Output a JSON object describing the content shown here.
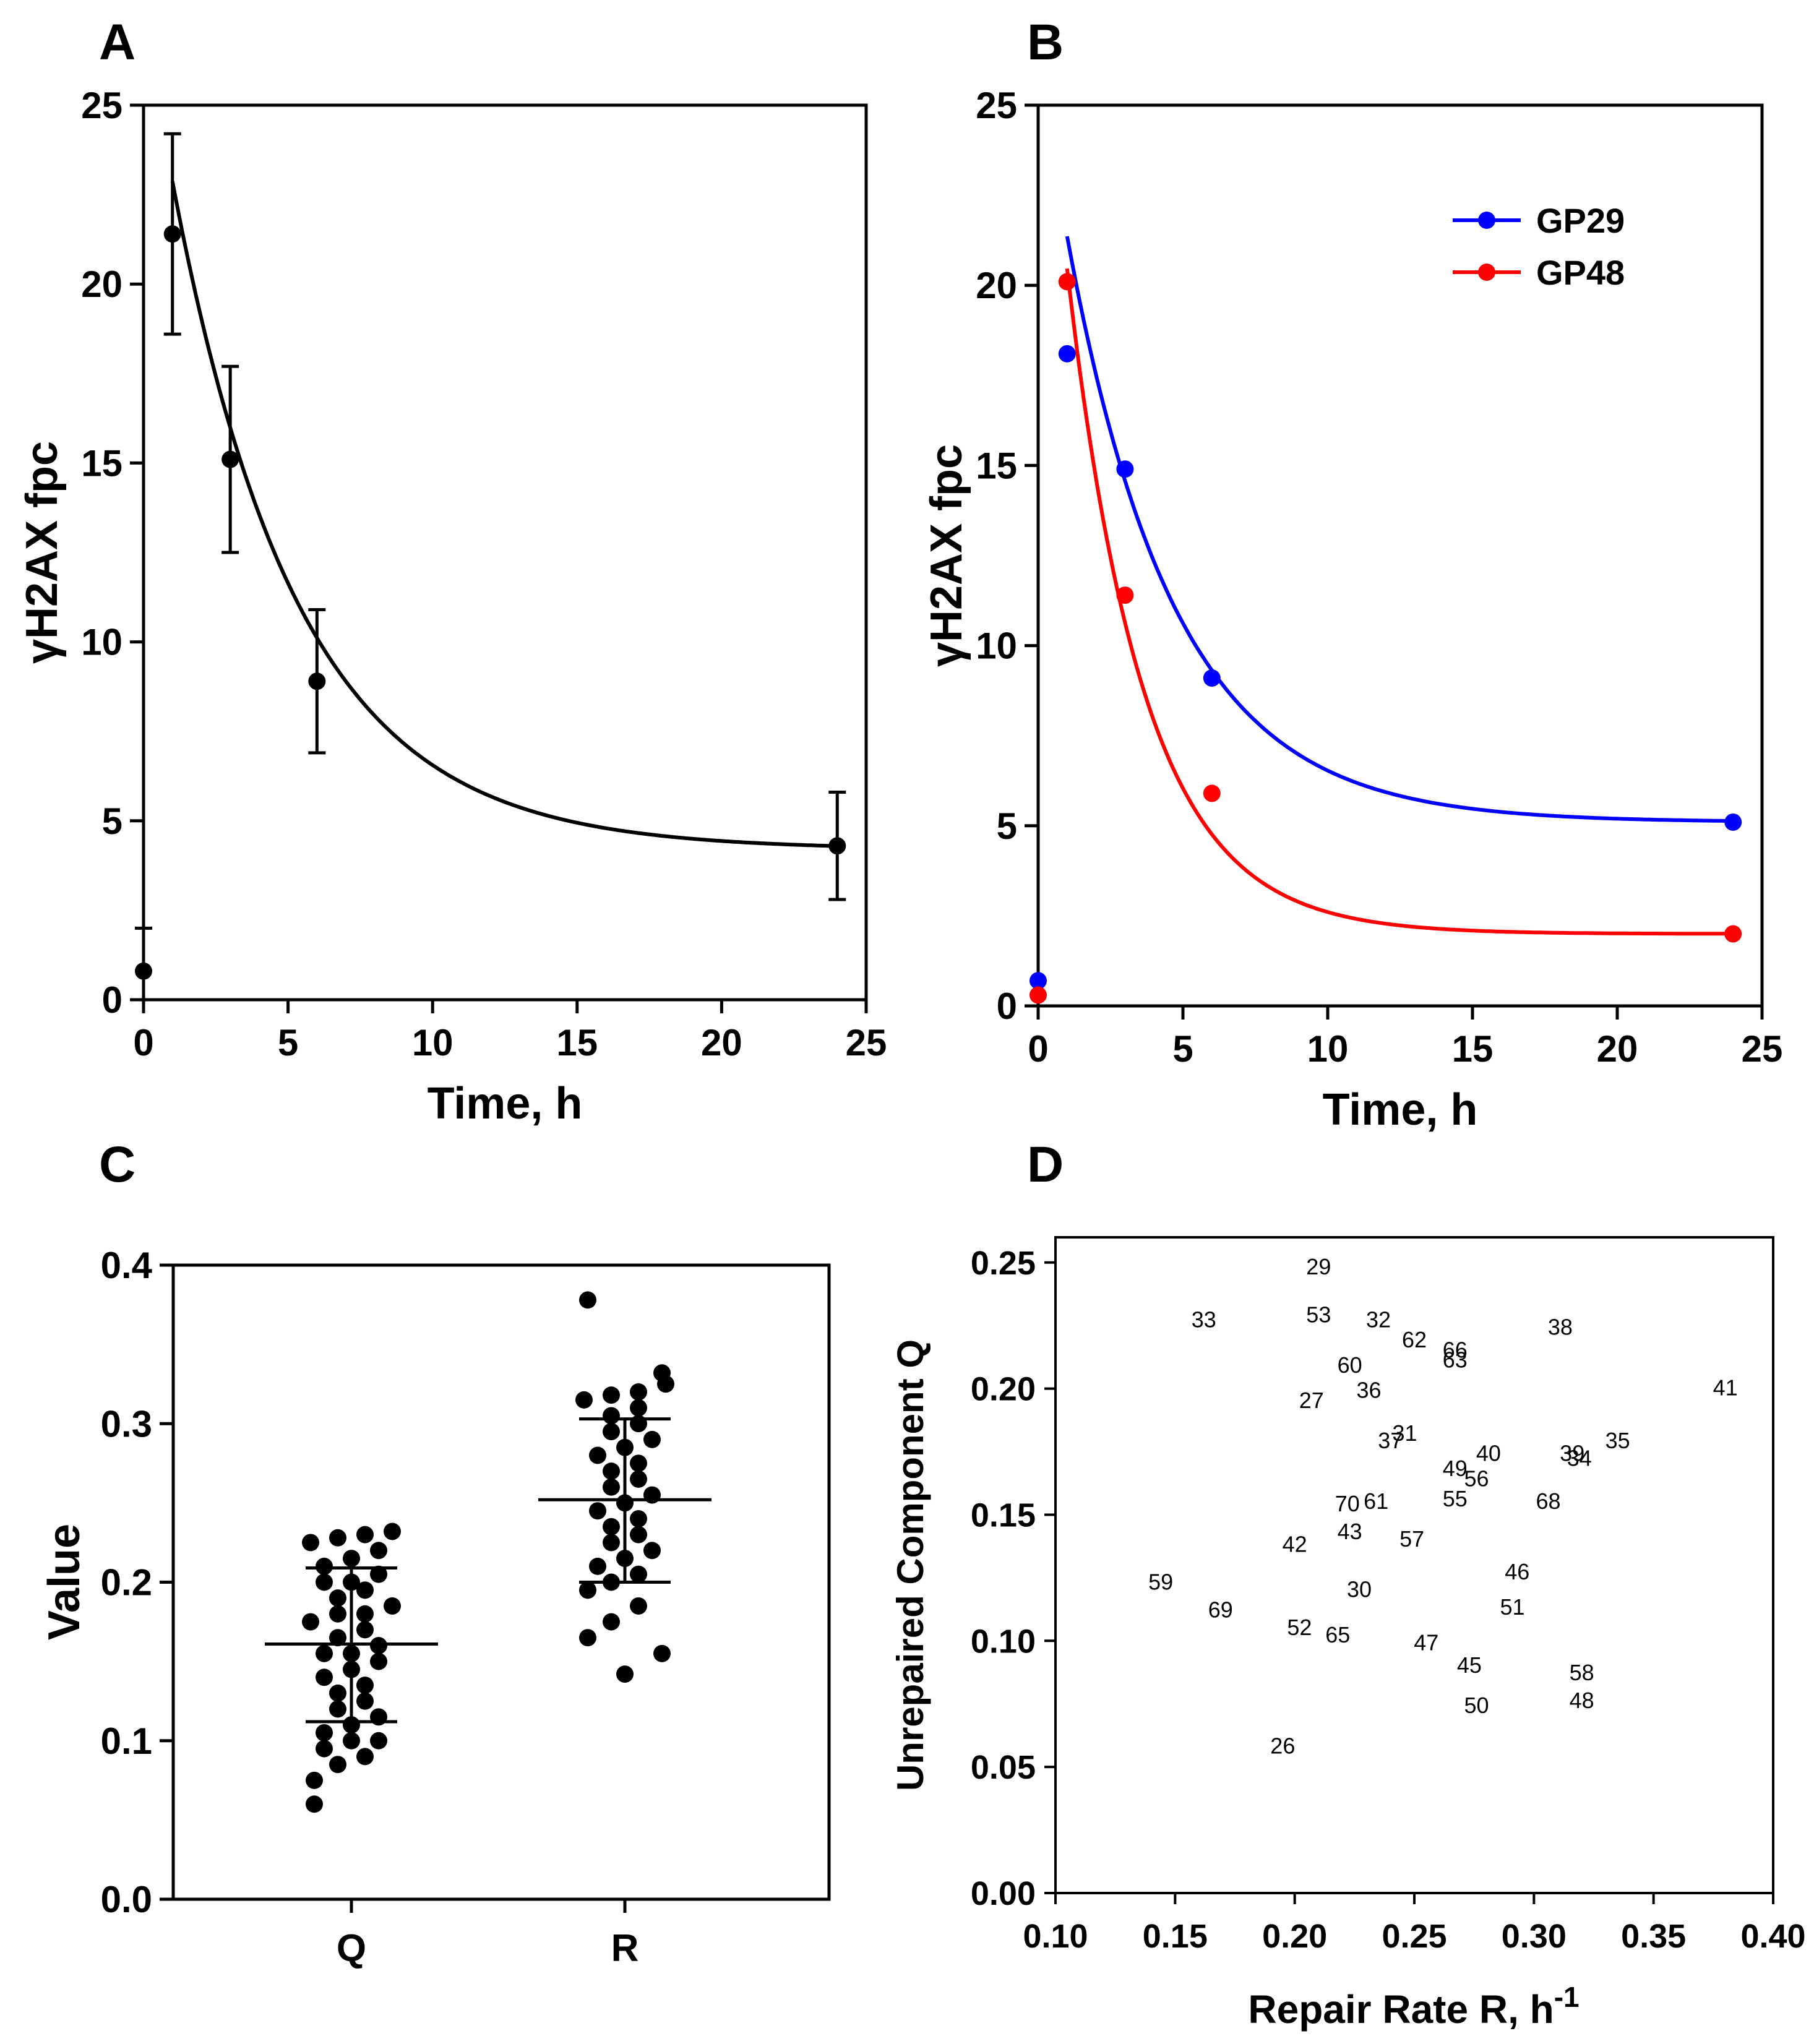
{
  "chart_data": [
    {
      "panel": "A",
      "type": "line",
      "xlabel": "Time, h",
      "ylabel": "γH2AX fpc",
      "xlim": [
        0,
        25
      ],
      "ylim": [
        0,
        25
      ],
      "xticks": [
        0,
        5,
        10,
        15,
        20,
        25
      ],
      "yticks": [
        0,
        5,
        10,
        15,
        20,
        25
      ],
      "series": [
        {
          "name": "mean",
          "color": "#000000",
          "x": [
            0,
            1,
            3,
            6,
            24
          ],
          "y": [
            0.8,
            21.4,
            15.1,
            8.9,
            4.3
          ],
          "yerr": [
            1.2,
            2.8,
            2.6,
            2.0,
            1.5
          ],
          "fit": {
            "model": "exponential",
            "a": 4.2,
            "b": 23.5,
            "k": 0.23,
            "from": 1,
            "to": 24
          }
        }
      ]
    },
    {
      "panel": "B",
      "type": "line",
      "xlabel": "Time, h",
      "ylabel": "γH2AX fpc",
      "xlim": [
        0,
        25
      ],
      "ylim": [
        0,
        25
      ],
      "xticks": [
        0,
        5,
        10,
        15,
        20,
        25
      ],
      "yticks": [
        0,
        5,
        10,
        15,
        20,
        25
      ],
      "legend": "top-right",
      "series": [
        {
          "name": "GP29",
          "color": "#0000ff",
          "x": [
            0,
            1,
            3,
            6,
            24
          ],
          "y": [
            0.7,
            18.1,
            14.9,
            9.1,
            5.1
          ],
          "fit": {
            "model": "exponential",
            "a": 5.1,
            "b": 21.3,
            "k": 0.27,
            "from": 1,
            "to": 24
          }
        },
        {
          "name": "GP48",
          "color": "#ff0000",
          "x": [
            0,
            1,
            3,
            6,
            24
          ],
          "y": [
            0.3,
            20.1,
            11.4,
            5.9,
            2.0
          ],
          "fit": {
            "model": "exponential",
            "a": 2.0,
            "b": 27.0,
            "k": 0.38,
            "from": 1,
            "to": 24
          }
        }
      ]
    },
    {
      "panel": "C",
      "type": "scatter",
      "ylabel": "Value",
      "categories": [
        "Q",
        "R"
      ],
      "ylim": [
        0.0,
        0.4
      ],
      "yticks": [
        "0.0",
        "0.1",
        "0.2",
        "0.3",
        "0.4"
      ],
      "series": [
        {
          "name": "Q",
          "mean": 0.161,
          "sd_low": 0.112,
          "sd_high": 0.209,
          "values": [
            0.06,
            0.075,
            0.085,
            0.09,
            0.095,
            0.1,
            0.1,
            0.105,
            0.11,
            0.115,
            0.12,
            0.125,
            0.13,
            0.135,
            0.14,
            0.145,
            0.15,
            0.155,
            0.155,
            0.16,
            0.165,
            0.17,
            0.175,
            0.18,
            0.18,
            0.185,
            0.19,
            0.195,
            0.2,
            0.2,
            0.205,
            0.21,
            0.215,
            0.22,
            0.225,
            0.228,
            0.23,
            0.232
          ]
        },
        {
          "name": "R",
          "mean": 0.252,
          "sd_low": 0.2,
          "sd_high": 0.303,
          "values": [
            0.142,
            0.155,
            0.165,
            0.175,
            0.185,
            0.195,
            0.2,
            0.205,
            0.21,
            0.215,
            0.22,
            0.225,
            0.23,
            0.235,
            0.24,
            0.245,
            0.25,
            0.255,
            0.26,
            0.265,
            0.27,
            0.275,
            0.28,
            0.285,
            0.29,
            0.295,
            0.3,
            0.305,
            0.31,
            0.315,
            0.318,
            0.32,
            0.325,
            0.332,
            0.378
          ]
        }
      ]
    },
    {
      "panel": "D",
      "type": "scatter",
      "xlabel": "Repair Rate R, h",
      "xlabel_sup": "-1",
      "ylabel": "Unrepaired Component Q",
      "xlim": [
        0.1,
        0.4
      ],
      "ylim": [
        0.0,
        0.26
      ],
      "xticks": [
        "0.10",
        "0.15",
        "0.20",
        "0.25",
        "0.30",
        "0.35",
        "0.40"
      ],
      "yticks": [
        "0.00",
        "0.05",
        "0.10",
        "0.15",
        "0.20",
        "0.25"
      ],
      "points": [
        {
          "label": "29",
          "x": 0.21,
          "y": 0.249
        },
        {
          "label": "33",
          "x": 0.162,
          "y": 0.228
        },
        {
          "label": "53",
          "x": 0.21,
          "y": 0.23
        },
        {
          "label": "32",
          "x": 0.235,
          "y": 0.228
        },
        {
          "label": "62",
          "x": 0.25,
          "y": 0.22
        },
        {
          "label": "66",
          "x": 0.267,
          "y": 0.216
        },
        {
          "label": "63",
          "x": 0.267,
          "y": 0.212
        },
        {
          "label": "38",
          "x": 0.311,
          "y": 0.225
        },
        {
          "label": "60",
          "x": 0.223,
          "y": 0.21
        },
        {
          "label": "36",
          "x": 0.231,
          "y": 0.2
        },
        {
          "label": "27",
          "x": 0.207,
          "y": 0.196
        },
        {
          "label": "41",
          "x": 0.38,
          "y": 0.201
        },
        {
          "label": "37",
          "x": 0.24,
          "y": 0.18
        },
        {
          "label": "31",
          "x": 0.246,
          "y": 0.183
        },
        {
          "label": "40",
          "x": 0.281,
          "y": 0.175
        },
        {
          "label": "39",
          "x": 0.316,
          "y": 0.175
        },
        {
          "label": "34",
          "x": 0.319,
          "y": 0.173
        },
        {
          "label": "35",
          "x": 0.335,
          "y": 0.18
        },
        {
          "label": "49",
          "x": 0.267,
          "y": 0.169
        },
        {
          "label": "56",
          "x": 0.276,
          "y": 0.165
        },
        {
          "label": "70",
          "x": 0.222,
          "y": 0.155
        },
        {
          "label": "61",
          "x": 0.234,
          "y": 0.156
        },
        {
          "label": "55",
          "x": 0.267,
          "y": 0.157
        },
        {
          "label": "68",
          "x": 0.306,
          "y": 0.156
        },
        {
          "label": "43",
          "x": 0.223,
          "y": 0.144
        },
        {
          "label": "42",
          "x": 0.2,
          "y": 0.139
        },
        {
          "label": "57",
          "x": 0.249,
          "y": 0.141
        },
        {
          "label": "46",
          "x": 0.293,
          "y": 0.128
        },
        {
          "label": "59",
          "x": 0.144,
          "y": 0.124
        },
        {
          "label": "30",
          "x": 0.227,
          "y": 0.121
        },
        {
          "label": "51",
          "x": 0.291,
          "y": 0.114
        },
        {
          "label": "69",
          "x": 0.169,
          "y": 0.113
        },
        {
          "label": "52",
          "x": 0.202,
          "y": 0.106
        },
        {
          "label": "65",
          "x": 0.218,
          "y": 0.103
        },
        {
          "label": "47",
          "x": 0.255,
          "y": 0.1
        },
        {
          "label": "45",
          "x": 0.273,
          "y": 0.091
        },
        {
          "label": "58",
          "x": 0.32,
          "y": 0.088
        },
        {
          "label": "48",
          "x": 0.32,
          "y": 0.077
        },
        {
          "label": "50",
          "x": 0.276,
          "y": 0.075
        },
        {
          "label": "26",
          "x": 0.195,
          "y": 0.059
        }
      ]
    }
  ]
}
